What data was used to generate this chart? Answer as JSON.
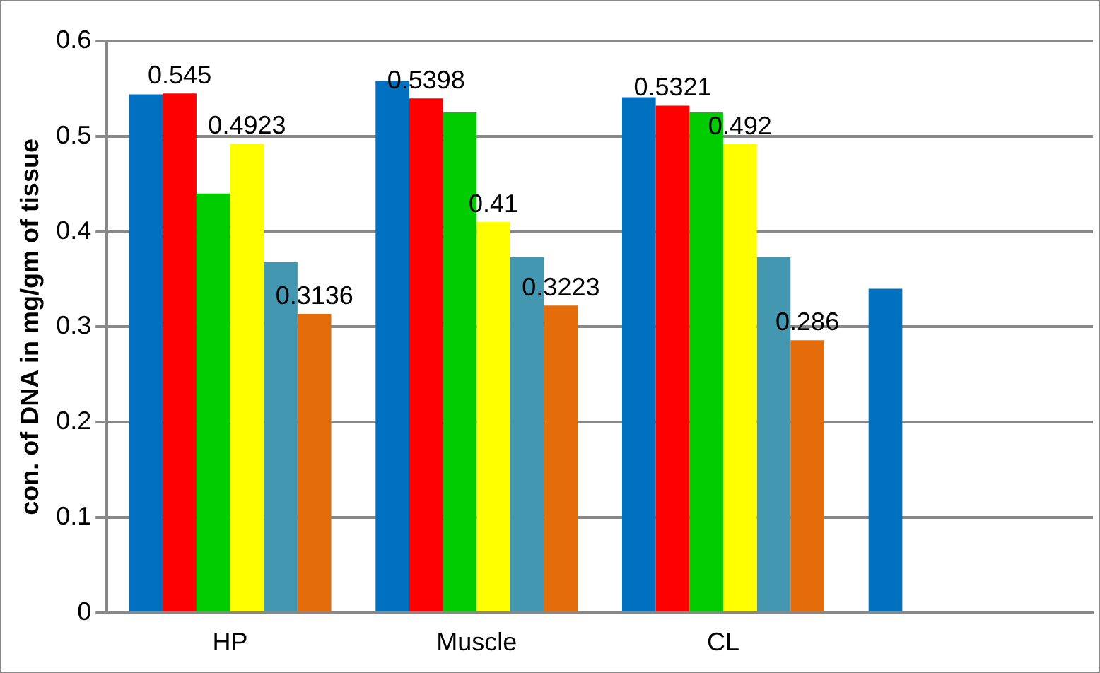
{
  "chart_data": {
    "type": "bar",
    "ylabel": "con. of DNA in mg/gm of tissue",
    "categories": [
      "HP",
      "Muscle",
      "CL",
      null
    ],
    "series": [
      {
        "color": "#0070c0",
        "values": [
          0.544,
          0.558,
          0.541,
          0.34
        ]
      },
      {
        "color": "#ff0000",
        "values": [
          0.545,
          0.5398,
          0.5321,
          null
        ],
        "value_labels": [
          "0.545",
          "0.5398",
          "0.5321",
          null
        ]
      },
      {
        "color": "#00cc00",
        "values": [
          0.44,
          0.525,
          0.525,
          null
        ]
      },
      {
        "color": "#ffff00",
        "values": [
          0.4923,
          0.41,
          0.492,
          null
        ],
        "value_labels": [
          "0.4923",
          "0.41",
          "0.492",
          null
        ]
      },
      {
        "color": "#4397b0",
        "values": [
          0.368,
          0.373,
          0.373,
          null
        ]
      },
      {
        "color": "#e46c0a",
        "values": [
          0.3136,
          0.3223,
          0.286,
          null
        ],
        "value_labels": [
          "0.3136",
          "0.3223",
          "0.286",
          null
        ]
      }
    ],
    "ylim": [
      0,
      0.6
    ],
    "yticks": [
      0,
      0.1,
      0.2,
      0.3,
      0.4,
      0.5,
      0.6
    ],
    "grid": "y",
    "legend": false
  }
}
